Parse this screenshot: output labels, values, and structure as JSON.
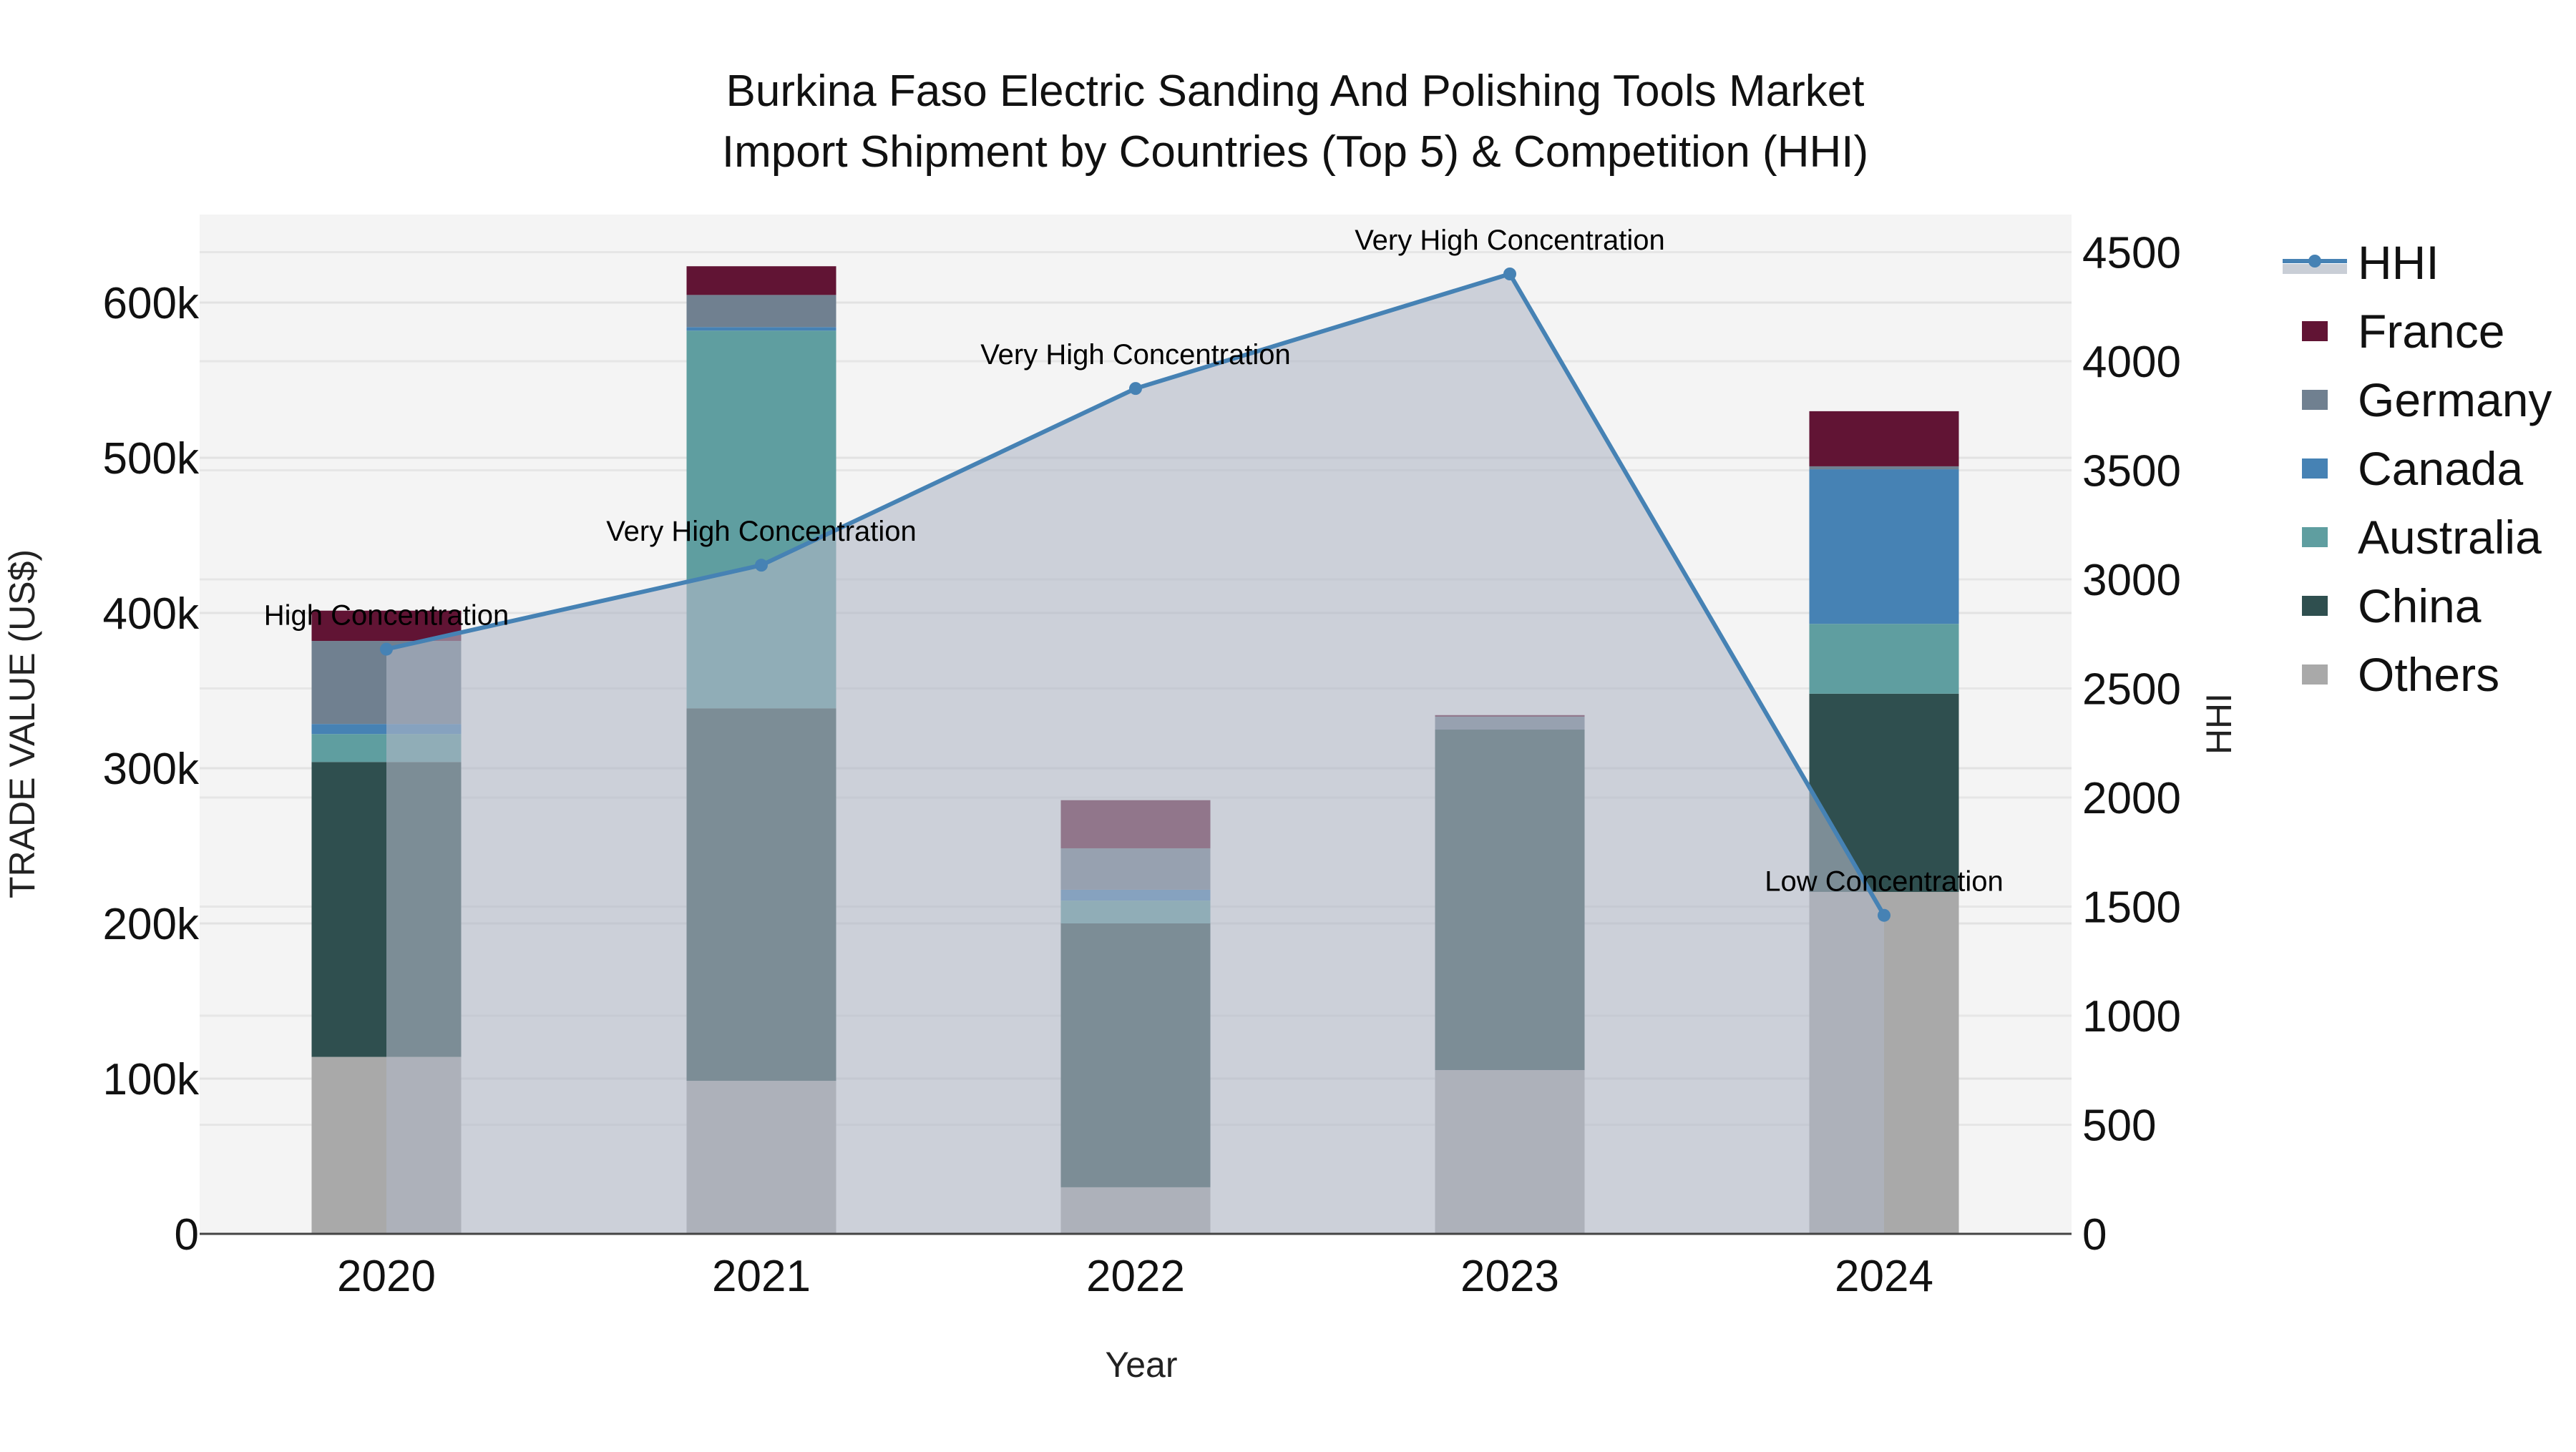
{
  "title": {
    "line1": "Burkina Faso Electric Sanding And Polishing Tools Market",
    "line2": "Import Shipment by Countries (Top 5) & Competition (HHI)"
  },
  "axes": {
    "x_title": "Year",
    "y_left_title": "TRADE VALUE (US$)",
    "y_right_title": "HHI",
    "y_left_ticks": [
      "0",
      "100k",
      "200k",
      "300k",
      "400k",
      "500k",
      "600k"
    ],
    "y_right_ticks": [
      "0",
      "500",
      "1000",
      "1500",
      "2000",
      "2500",
      "3000",
      "3500",
      "4000",
      "4500"
    ]
  },
  "legend": [
    {
      "name": "HHI",
      "type": "line"
    },
    {
      "name": "France",
      "color": "#611434"
    },
    {
      "name": "Germany",
      "color": "#708090"
    },
    {
      "name": "Canada",
      "color": "#4682b4"
    },
    {
      "name": "Australia",
      "color": "#5f9ea0"
    },
    {
      "name": "China",
      "color": "#2f4f4f"
    },
    {
      "name": "Others",
      "color": "#a9a9a9"
    }
  ],
  "colors": {
    "hhi_line": "#4682b4",
    "hhi_fill": "rgba(176,184,198,0.6)",
    "plot_bg": "#f4f4f4",
    "grid": "#e2e2e2",
    "axis_line": "#444444"
  },
  "chart_data": {
    "type": "bar",
    "subtype": "stacked bar + line (dual axis)",
    "title": "Burkina Faso Electric Sanding And Polishing Tools Market Import Shipment by Countries (Top 5) & Competition (HHI)",
    "xlabel": "Year",
    "ylabel": "TRADE VALUE (US$)",
    "y2label": "HHI",
    "categories": [
      "2020",
      "2021",
      "2022",
      "2023",
      "2024"
    ],
    "ylim": [
      0,
      655000
    ],
    "y2lim": [
      0,
      4675
    ],
    "grid": true,
    "legend_position": "right",
    "series": [
      {
        "name": "Others",
        "type": "bar",
        "color": "#a9a9a9",
        "values": [
          114000,
          98600,
          30000,
          105500,
          220300
        ]
      },
      {
        "name": "China",
        "type": "bar",
        "color": "#2f4f4f",
        "values": [
          190000,
          240000,
          170000,
          219400,
          127700
        ]
      },
      {
        "name": "Australia",
        "type": "bar",
        "color": "#5f9ea0",
        "values": [
          18000,
          243300,
          14700,
          0,
          45000
        ]
      },
      {
        "name": "Canada",
        "type": "bar",
        "color": "#4682b4",
        "values": [
          6500,
          2300,
          7000,
          0,
          99600
        ]
      },
      {
        "name": "Germany",
        "type": "bar",
        "color": "#708090",
        "values": [
          53500,
          20700,
          26700,
          8300,
          1900
        ]
      },
      {
        "name": "France",
        "type": "bar",
        "color": "#611434",
        "values": [
          19500,
          18500,
          31000,
          1000,
          35500
        ]
      },
      {
        "name": "HHI",
        "type": "line",
        "axis": "right",
        "color": "#4682b4",
        "values": [
          2680,
          3065,
          3875,
          4400,
          1460
        ]
      }
    ],
    "annotations": [
      {
        "x": "2020",
        "text": "High Concentration"
      },
      {
        "x": "2021",
        "text": "Very High Concentration"
      },
      {
        "x": "2022",
        "text": "Very High Concentration"
      },
      {
        "x": "2023",
        "text": "Very High Concentration"
      },
      {
        "x": "2024",
        "text": "Low Concentration"
      }
    ]
  }
}
